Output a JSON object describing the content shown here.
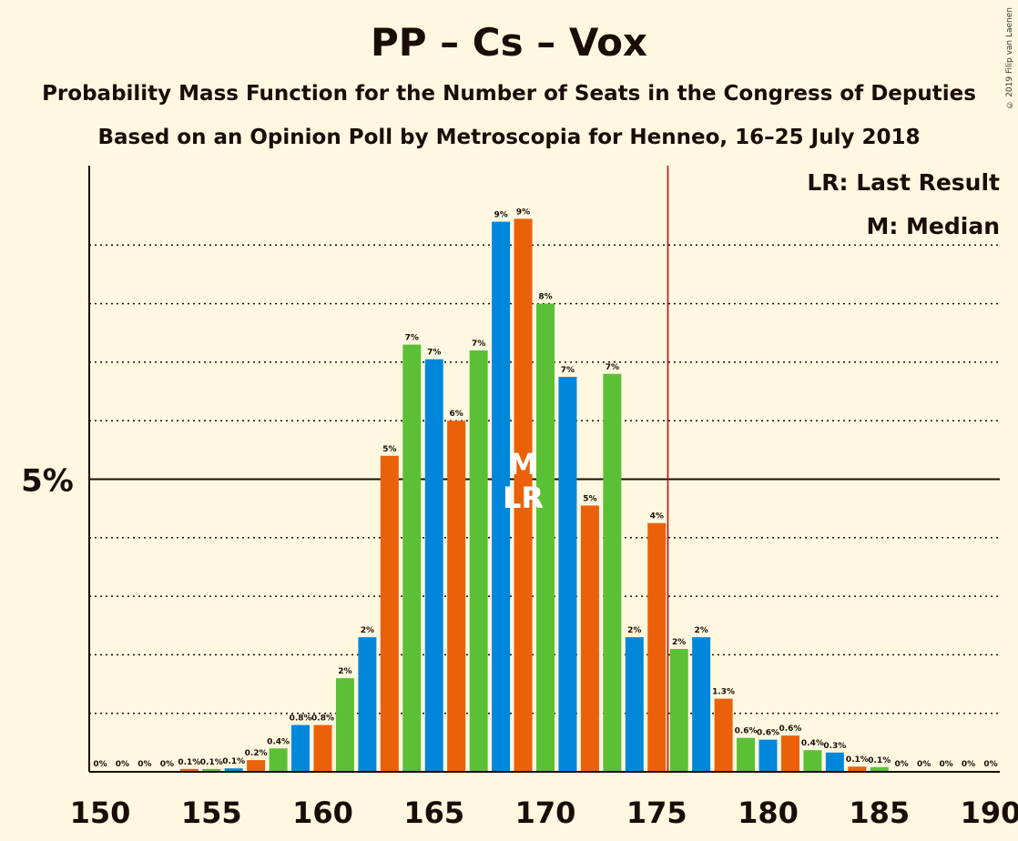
{
  "title": "PP – Cs – Vox",
  "subtitle": "Probability Mass Function for the Number of Seats in the Congress of Deputies",
  "subtitle2": "Based on an Opinion Poll by Metroscopia for Henneo, 16–25 July 2018",
  "copyright": "© 2019 Filip van Laenen",
  "legend": {
    "lr": "LR: Last Result",
    "m": "M: Median"
  },
  "colors": {
    "pp": "#0087DC",
    "cs": "#EB6109",
    "vox": "#5BC035",
    "lastResult": "#C00000",
    "background": "#FFF8E1"
  },
  "chart_data": {
    "type": "bar",
    "x": [
      150,
      151,
      152,
      153,
      154,
      155,
      156,
      157,
      158,
      159,
      160,
      161,
      162,
      163,
      164,
      165,
      166,
      167,
      168,
      169,
      170,
      171,
      172,
      173,
      174,
      175,
      176,
      177,
      178,
      179,
      180,
      181,
      182,
      183,
      184,
      185,
      186,
      187,
      188,
      189,
      190
    ],
    "values": [
      0,
      0,
      0,
      0,
      0.05,
      0.05,
      0.06,
      0.2,
      0.4,
      0.8,
      0.8,
      1.6,
      2.3,
      5.4,
      7.3,
      7.05,
      6.0,
      7.2,
      9.4,
      9.45,
      8.0,
      6.75,
      4.55,
      6.8,
      2.3,
      4.25,
      2.1,
      2.3,
      1.25,
      0.58,
      0.55,
      0.62,
      0.37,
      0.33,
      0.09,
      0.08,
      0,
      0,
      0,
      0,
      0
    ],
    "labels": [
      "0%",
      "0%",
      "0%",
      "0%",
      "0.1%",
      "0.1%",
      "0.1%",
      "0.2%",
      "0.4%",
      "0.8%",
      "0.8%",
      "2%",
      "2%",
      "5%",
      "7%",
      "7%",
      "6%",
      "7%",
      "9%",
      "9%",
      "8%",
      "7%",
      "5%",
      "7%",
      "2%",
      "4%",
      "2%",
      "2%",
      "1.3%",
      "0.6%",
      "0.6%",
      "0.6%",
      "0.4%",
      "0.3%",
      "0.1%",
      "0.1%",
      "0%",
      "0%",
      "0%",
      "0%",
      "0%"
    ],
    "colors": [
      "pp",
      "cs",
      "vox",
      "pp",
      "cs",
      "vox",
      "pp",
      "cs",
      "vox",
      "pp",
      "cs",
      "vox",
      "pp",
      "cs",
      "vox",
      "pp",
      "cs",
      "vox",
      "pp",
      "cs",
      "vox",
      "pp",
      "cs",
      "vox",
      "pp",
      "cs",
      "vox",
      "pp",
      "cs",
      "vox",
      "pp",
      "cs",
      "vox",
      "pp",
      "cs",
      "vox",
      "pp",
      "cs",
      "vox",
      "pp",
      "cs"
    ],
    "xticks": [
      "150",
      "155",
      "160",
      "165",
      "170",
      "175",
      "180",
      "185",
      "190"
    ],
    "ylabel_5": "5%",
    "ylim": [
      0,
      10.3
    ],
    "gridlines": [
      1,
      2,
      3,
      4,
      6,
      7,
      8,
      9
    ],
    "median": 169,
    "median_label": "M",
    "last_result": 169,
    "last_result_label": "LR",
    "majority_line": 176
  }
}
